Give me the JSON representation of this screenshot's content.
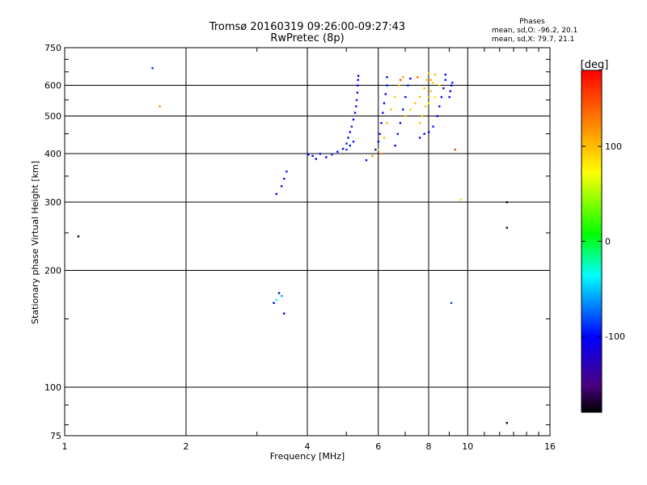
{
  "chart_data": {
    "type": "scatter",
    "title": "Tromsø 20160319 09:26:00-09:27:43",
    "subtitle": "RwPretec (8p)",
    "xlabel": "Frequency [MHz]",
    "ylabel": "Stationary phase Virtual Height [km]",
    "x_scale": "log",
    "y_scale": "log",
    "xlim": [
      1,
      16
    ],
    "ylim": [
      75,
      750
    ],
    "x_ticks": [
      1,
      2,
      4,
      6,
      8,
      10,
      16
    ],
    "x_tick_labels": [
      "1",
      "2",
      "4",
      "6",
      "8",
      "10",
      "16"
    ],
    "y_ticks": [
      75,
      100,
      200,
      300,
      400,
      500,
      600,
      750
    ],
    "y_tick_labels": [
      "75",
      "100",
      "200",
      "300",
      "400",
      "500",
      "600",
      "750"
    ],
    "grid": true,
    "colorbar": {
      "label": "[deg]",
      "range": [
        -180,
        180
      ],
      "ticks": [
        -100,
        0,
        100
      ],
      "tick_labels": [
        "-100",
        "0",
        "100"
      ]
    },
    "phases": {
      "heading": "Phases",
      "o_line": "mean, sd,O: -96.2, 20.1",
      "x_line": "mean, sd,X:  79.7, 21.1"
    },
    "series": [
      {
        "mode": "O",
        "points": [
          [
            4.02,
            398,
            -100
          ],
          [
            4.12,
            395,
            -105
          ],
          [
            4.2,
            388,
            -100
          ],
          [
            4.3,
            400,
            -95
          ],
          [
            4.45,
            392,
            -100
          ],
          [
            4.6,
            398,
            -90
          ],
          [
            4.75,
            405,
            -100
          ],
          [
            4.9,
            412,
            -105
          ],
          [
            5.0,
            425,
            -95
          ],
          [
            5.05,
            440,
            -100
          ],
          [
            5.1,
            455,
            -100
          ],
          [
            5.15,
            470,
            -95
          ],
          [
            5.2,
            490,
            -100
          ],
          [
            5.25,
            510,
            -105
          ],
          [
            5.28,
            530,
            -100
          ],
          [
            5.3,
            550,
            -95
          ],
          [
            5.32,
            575,
            -100
          ],
          [
            5.33,
            600,
            -100
          ],
          [
            5.34,
            620,
            -105
          ],
          [
            5.35,
            635,
            -100
          ],
          [
            5.0,
            410,
            -90
          ],
          [
            5.1,
            420,
            -100
          ],
          [
            5.2,
            430,
            -95
          ],
          [
            5.6,
            385,
            -100
          ],
          [
            5.8,
            395,
            -105
          ],
          [
            5.9,
            410,
            -100
          ],
          [
            6.0,
            430,
            -100
          ],
          [
            6.05,
            450,
            -95
          ],
          [
            6.1,
            480,
            -100
          ],
          [
            6.15,
            510,
            -100
          ],
          [
            6.2,
            540,
            -105
          ],
          [
            6.25,
            570,
            -100
          ],
          [
            6.3,
            600,
            -95
          ],
          [
            6.3,
            630,
            -100
          ],
          [
            6.6,
            420,
            -100
          ],
          [
            6.7,
            450,
            -95
          ],
          [
            6.8,
            480,
            -100
          ],
          [
            6.9,
            520,
            -105
          ],
          [
            7.0,
            560,
            -100
          ],
          [
            7.1,
            600,
            -95
          ],
          [
            7.2,
            625,
            -100
          ],
          [
            7.6,
            440,
            -100
          ],
          [
            7.8,
            450,
            -105
          ],
          [
            8.0,
            455,
            -100
          ],
          [
            8.2,
            470,
            -95
          ],
          [
            8.4,
            500,
            -100
          ],
          [
            8.5,
            530,
            -100
          ],
          [
            8.6,
            560,
            -105
          ],
          [
            8.7,
            590,
            -100
          ],
          [
            8.8,
            620,
            -95
          ],
          [
            8.8,
            640,
            -100
          ],
          [
            9.0,
            560,
            -100
          ],
          [
            9.05,
            580,
            -105
          ],
          [
            9.1,
            600,
            -100
          ],
          [
            9.15,
            610,
            -95
          ],
          [
            3.35,
            315,
            -100
          ],
          [
            3.45,
            330,
            -105
          ],
          [
            3.5,
            345,
            -100
          ],
          [
            3.55,
            360,
            -95
          ],
          [
            3.3,
            165,
            -100
          ],
          [
            3.4,
            175,
            -110
          ],
          [
            3.45,
            172,
            -60
          ],
          [
            3.5,
            155,
            -100
          ],
          [
            3.35,
            168,
            -30
          ],
          [
            1.65,
            665,
            -90
          ],
          [
            9.1,
            165,
            -80
          ]
        ]
      },
      {
        "mode": "X",
        "points": [
          [
            5.8,
            395,
            100
          ],
          [
            6.0,
            410,
            95
          ],
          [
            6.2,
            440,
            100
          ],
          [
            6.3,
            480,
            105
          ],
          [
            6.45,
            520,
            100
          ],
          [
            6.6,
            560,
            95
          ],
          [
            6.75,
            600,
            100
          ],
          [
            6.9,
            630,
            105
          ],
          [
            7.0,
            500,
            100
          ],
          [
            7.2,
            520,
            95
          ],
          [
            7.4,
            540,
            100
          ],
          [
            7.6,
            560,
            105
          ],
          [
            7.8,
            590,
            100
          ],
          [
            7.9,
            620,
            95
          ],
          [
            8.0,
            645,
            100
          ],
          [
            7.6,
            480,
            100
          ],
          [
            7.7,
            500,
            95
          ],
          [
            7.85,
            530,
            100
          ],
          [
            8.0,
            560,
            105
          ],
          [
            8.1,
            580,
            100
          ],
          [
            8.2,
            610,
            95
          ],
          [
            8.3,
            640,
            100
          ],
          [
            8.0,
            540,
            80
          ],
          [
            8.3,
            560,
            85
          ],
          [
            8.5,
            600,
            90
          ],
          [
            8.1,
            620,
            110
          ],
          [
            6.1,
            400,
            120
          ],
          [
            6.8,
            620,
            150
          ],
          [
            7.5,
            630,
            135
          ],
          [
            1.72,
            530,
            120
          ],
          [
            9.6,
            305,
            60
          ],
          [
            9.3,
            410,
            150
          ]
        ]
      },
      {
        "mode": "noise",
        "points": [
          [
            1.08,
            245,
            -180
          ],
          [
            12.5,
            300,
            -180
          ],
          [
            12.5,
            258,
            -170
          ],
          [
            12.5,
            81,
            -170
          ]
        ]
      }
    ]
  }
}
